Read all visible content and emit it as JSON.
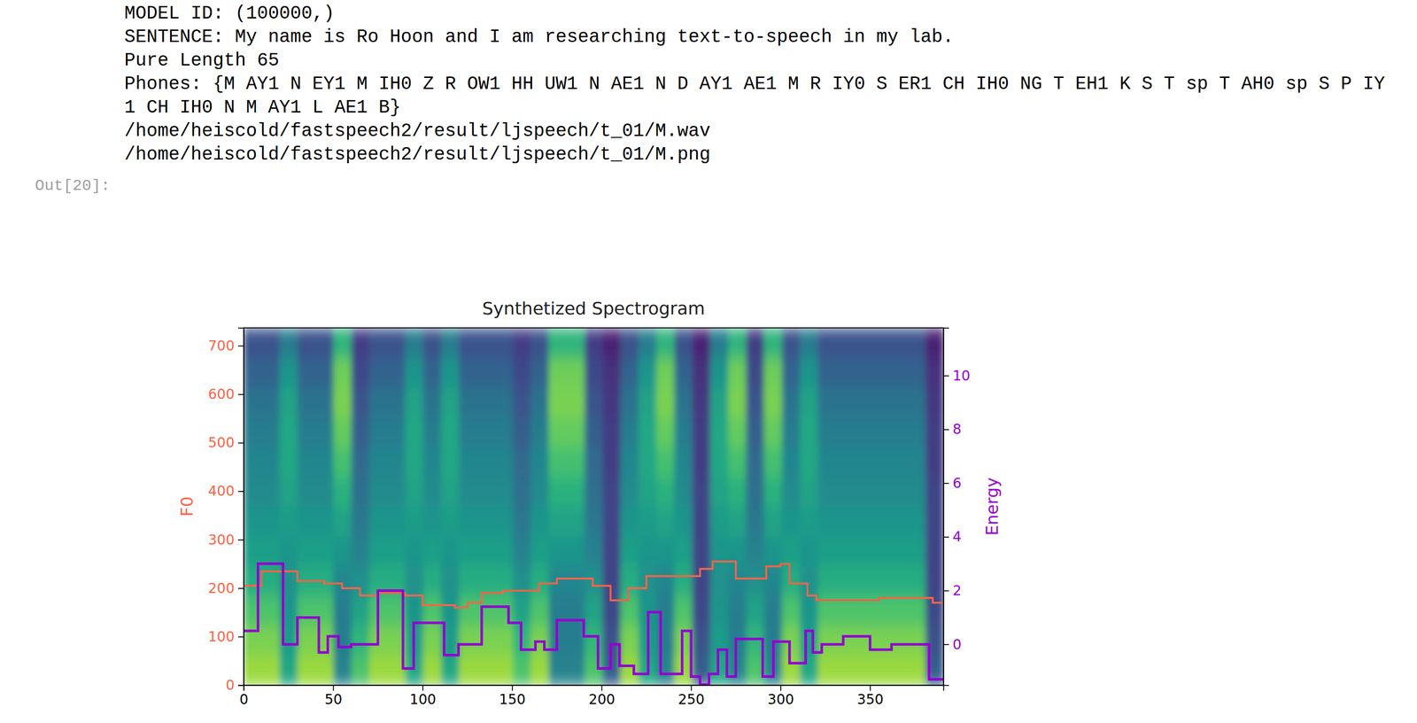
{
  "notebook": {
    "output_lines": [
      "MODEL ID: (100000,)",
      "SENTENCE: My name is Ro Hoon and I am researching text-to-speech in my lab.",
      "Pure Length 65",
      "Phones: {M AY1 N EY1 M IH0 Z R OW1 HH UW1 N AE1 N D AY1 AE1 M R IY0 S ER1 CH IH0 NG T EH1 K S T sp T AH0 sp S P IY1 CH IH0 N M AY1 L AE1 B}",
      "/home/heiscold/fastspeech2/result/ljspeech/t_01/M.wav",
      "/home/heiscold/fastspeech2/result/ljspeech/t_01/M.png"
    ],
    "prompt": "Out[20]:"
  },
  "chart_data": {
    "type": "line",
    "title": "Synthetized Spectrogram",
    "grid": false,
    "xlim": [
      0,
      391
    ],
    "xticks": [
      0,
      50,
      100,
      150,
      200,
      250,
      300,
      350
    ],
    "ylim": [
      0,
      737
    ],
    "yticks": [
      0,
      100,
      200,
      300,
      400,
      500,
      600,
      700
    ],
    "y2lim": [
      -1.52,
      11.78
    ],
    "y2ticks": [
      0,
      2,
      4,
      6,
      8,
      10
    ],
    "spectrogram": {
      "value_range": [
        0,
        1
      ],
      "values": [
        [
          0.85,
          0.8,
          0.72,
          0.62,
          0.56,
          0.52,
          0.48,
          0.46,
          0.42,
          0.38,
          0.32,
          0.25
        ],
        [
          0.85,
          0.8,
          0.72,
          0.62,
          0.56,
          0.52,
          0.48,
          0.46,
          0.42,
          0.38,
          0.32,
          0.25
        ],
        [
          0.6,
          0.55,
          0.52,
          0.5,
          0.52,
          0.55,
          0.58,
          0.6,
          0.6,
          0.58,
          0.52,
          0.42
        ],
        [
          0.85,
          0.8,
          0.72,
          0.62,
          0.56,
          0.52,
          0.48,
          0.46,
          0.42,
          0.38,
          0.32,
          0.25
        ],
        [
          0.85,
          0.8,
          0.72,
          0.62,
          0.56,
          0.52,
          0.48,
          0.46,
          0.42,
          0.38,
          0.32,
          0.25
        ],
        [
          0.45,
          0.42,
          0.42,
          0.46,
          0.52,
          0.58,
          0.64,
          0.7,
          0.76,
          0.8,
          0.78,
          0.65
        ],
        [
          0.72,
          0.66,
          0.58,
          0.5,
          0.44,
          0.4,
          0.36,
          0.34,
          0.3,
          0.26,
          0.22,
          0.18
        ],
        [
          0.85,
          0.8,
          0.72,
          0.62,
          0.56,
          0.52,
          0.48,
          0.46,
          0.42,
          0.38,
          0.32,
          0.25
        ],
        [
          0.85,
          0.8,
          0.72,
          0.62,
          0.56,
          0.52,
          0.48,
          0.46,
          0.42,
          0.38,
          0.32,
          0.25
        ],
        [
          0.6,
          0.55,
          0.52,
          0.5,
          0.52,
          0.55,
          0.58,
          0.6,
          0.6,
          0.58,
          0.52,
          0.42
        ],
        [
          0.85,
          0.8,
          0.72,
          0.62,
          0.56,
          0.52,
          0.48,
          0.46,
          0.42,
          0.38,
          0.32,
          0.25
        ],
        [
          0.6,
          0.55,
          0.52,
          0.5,
          0.52,
          0.55,
          0.58,
          0.6,
          0.6,
          0.58,
          0.52,
          0.42
        ],
        [
          0.85,
          0.8,
          0.72,
          0.62,
          0.56,
          0.52,
          0.48,
          0.46,
          0.42,
          0.38,
          0.32,
          0.25
        ],
        [
          0.85,
          0.8,
          0.72,
          0.62,
          0.56,
          0.52,
          0.48,
          0.46,
          0.42,
          0.38,
          0.32,
          0.25
        ],
        [
          0.85,
          0.8,
          0.72,
          0.62,
          0.56,
          0.52,
          0.48,
          0.46,
          0.42,
          0.38,
          0.32,
          0.25
        ],
        [
          0.72,
          0.66,
          0.58,
          0.5,
          0.44,
          0.4,
          0.36,
          0.34,
          0.3,
          0.26,
          0.22,
          0.18
        ],
        [
          0.85,
          0.8,
          0.72,
          0.62,
          0.56,
          0.52,
          0.48,
          0.46,
          0.42,
          0.38,
          0.32,
          0.25
        ],
        [
          0.45,
          0.42,
          0.42,
          0.46,
          0.52,
          0.58,
          0.64,
          0.7,
          0.76,
          0.8,
          0.78,
          0.65
        ],
        [
          0.45,
          0.42,
          0.42,
          0.46,
          0.52,
          0.58,
          0.64,
          0.7,
          0.76,
          0.8,
          0.78,
          0.65
        ],
        [
          0.72,
          0.66,
          0.58,
          0.5,
          0.44,
          0.4,
          0.36,
          0.34,
          0.3,
          0.26,
          0.22,
          0.18
        ],
        [
          0.3,
          0.25,
          0.22,
          0.2,
          0.2,
          0.2,
          0.2,
          0.18,
          0.18,
          0.16,
          0.14,
          0.1
        ],
        [
          0.85,
          0.8,
          0.72,
          0.62,
          0.56,
          0.52,
          0.48,
          0.46,
          0.42,
          0.38,
          0.32,
          0.25
        ],
        [
          0.6,
          0.55,
          0.52,
          0.5,
          0.52,
          0.55,
          0.58,
          0.6,
          0.6,
          0.58,
          0.52,
          0.42
        ],
        [
          0.45,
          0.42,
          0.42,
          0.46,
          0.52,
          0.58,
          0.64,
          0.7,
          0.76,
          0.8,
          0.78,
          0.65
        ],
        [
          0.85,
          0.8,
          0.72,
          0.62,
          0.56,
          0.52,
          0.48,
          0.46,
          0.42,
          0.38,
          0.32,
          0.25
        ],
        [
          0.3,
          0.25,
          0.22,
          0.2,
          0.2,
          0.2,
          0.2,
          0.18,
          0.18,
          0.16,
          0.14,
          0.1
        ],
        [
          0.6,
          0.55,
          0.52,
          0.5,
          0.52,
          0.55,
          0.58,
          0.6,
          0.6,
          0.58,
          0.52,
          0.42
        ],
        [
          0.45,
          0.42,
          0.42,
          0.46,
          0.52,
          0.58,
          0.64,
          0.7,
          0.76,
          0.8,
          0.78,
          0.65
        ],
        [
          0.72,
          0.66,
          0.58,
          0.5,
          0.44,
          0.4,
          0.36,
          0.34,
          0.3,
          0.26,
          0.22,
          0.18
        ],
        [
          0.45,
          0.42,
          0.42,
          0.46,
          0.52,
          0.58,
          0.64,
          0.7,
          0.76,
          0.8,
          0.78,
          0.65
        ],
        [
          0.85,
          0.8,
          0.72,
          0.62,
          0.56,
          0.52,
          0.48,
          0.46,
          0.42,
          0.38,
          0.32,
          0.25
        ],
        [
          0.6,
          0.55,
          0.52,
          0.5,
          0.52,
          0.55,
          0.58,
          0.6,
          0.6,
          0.58,
          0.52,
          0.42
        ],
        [
          0.85,
          0.8,
          0.72,
          0.62,
          0.56,
          0.52,
          0.48,
          0.46,
          0.42,
          0.38,
          0.32,
          0.25
        ],
        [
          0.85,
          0.8,
          0.72,
          0.62,
          0.56,
          0.52,
          0.48,
          0.46,
          0.42,
          0.38,
          0.32,
          0.25
        ],
        [
          0.85,
          0.8,
          0.72,
          0.62,
          0.56,
          0.52,
          0.48,
          0.46,
          0.42,
          0.38,
          0.32,
          0.25
        ],
        [
          0.85,
          0.8,
          0.72,
          0.62,
          0.56,
          0.52,
          0.48,
          0.46,
          0.42,
          0.38,
          0.32,
          0.25
        ],
        [
          0.85,
          0.8,
          0.72,
          0.62,
          0.56,
          0.52,
          0.48,
          0.46,
          0.42,
          0.38,
          0.32,
          0.25
        ],
        [
          0.85,
          0.8,
          0.72,
          0.62,
          0.56,
          0.52,
          0.48,
          0.46,
          0.42,
          0.38,
          0.32,
          0.25
        ],
        [
          0.3,
          0.25,
          0.22,
          0.2,
          0.2,
          0.2,
          0.2,
          0.18,
          0.18,
          0.16,
          0.14,
          0.1
        ]
      ]
    },
    "series": [
      {
        "name": "F0",
        "color": "#ff6347",
        "x": [
          0,
          10,
          30,
          45,
          55,
          65,
          75,
          90,
          100,
          118,
          125,
          133,
          145,
          165,
          175,
          195,
          205,
          215,
          225,
          255,
          262,
          275,
          292,
          300,
          305,
          315,
          320,
          355,
          385,
          391
        ],
        "values": [
          205,
          235,
          215,
          210,
          200,
          185,
          190,
          185,
          165,
          160,
          170,
          190,
          195,
          210,
          220,
          205,
          175,
          200,
          225,
          240,
          255,
          220,
          245,
          250,
          210,
          185,
          175,
          180,
          170,
          170
        ]
      },
      {
        "name": "Energy",
        "color": "#9400d3",
        "axis": "y2",
        "x": [
          0,
          8,
          22,
          30,
          42,
          47,
          53,
          60,
          75,
          89,
          95,
          112,
          120,
          133,
          148,
          155,
          163,
          168,
          175,
          190,
          198,
          205,
          210,
          218,
          226,
          233,
          245,
          250,
          255,
          260,
          265,
          270,
          275,
          290,
          296,
          305,
          314,
          318,
          323,
          335,
          350,
          362,
          383,
          391
        ],
        "values": [
          0.5,
          3.0,
          0.0,
          1.0,
          -0.3,
          0.3,
          -0.1,
          0.0,
          2.0,
          -0.9,
          0.8,
          -0.4,
          0.0,
          1.4,
          0.8,
          -0.2,
          0.1,
          -0.2,
          0.9,
          0.3,
          -0.9,
          0.0,
          -0.8,
          -1.1,
          1.2,
          -1.1,
          0.5,
          -1.2,
          -1.5,
          -1.1,
          -0.2,
          -1.2,
          0.2,
          -1.2,
          0.1,
          -0.7,
          0.5,
          -0.3,
          0.0,
          0.3,
          -0.2,
          0.0,
          -1.3,
          -1.3
        ]
      }
    ]
  }
}
